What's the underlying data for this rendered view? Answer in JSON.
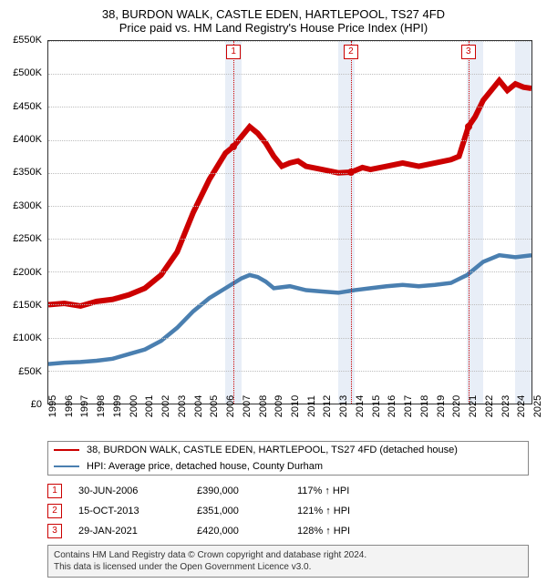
{
  "title_line1": "38, BURDON WALK, CASTLE EDEN, HARTLEPOOL, TS27 4FD",
  "title_line2": "Price paid vs. HM Land Registry's House Price Index (HPI)",
  "chart": {
    "type": "line",
    "background_color": "#ffffff",
    "grid_color": "#bdbdbd",
    "band_color": "#e8eef7",
    "ylim": [
      0,
      550000
    ],
    "ytick_step": 50000,
    "yticks": [
      "£0",
      "£50K",
      "£100K",
      "£150K",
      "£200K",
      "£250K",
      "£300K",
      "£350K",
      "£400K",
      "£450K",
      "£500K",
      "£550K"
    ],
    "x_start_year": 1995,
    "x_end_year": 2025,
    "xticks": [
      "1995",
      "1996",
      "1997",
      "1998",
      "1999",
      "2000",
      "2001",
      "2002",
      "2003",
      "2004",
      "2005",
      "2006",
      "2007",
      "2008",
      "2009",
      "2010",
      "2011",
      "2012",
      "2013",
      "2014",
      "2015",
      "2016",
      "2017",
      "2018",
      "2019",
      "2020",
      "2021",
      "2022",
      "2023",
      "2024",
      "2025"
    ],
    "series": [
      {
        "name": "property",
        "color": "#cc0000",
        "width": 2,
        "points": [
          [
            1995.0,
            150000
          ],
          [
            1996.0,
            152000
          ],
          [
            1997.0,
            148000
          ],
          [
            1998.0,
            155000
          ],
          [
            1999.0,
            158000
          ],
          [
            2000.0,
            165000
          ],
          [
            2001.0,
            175000
          ],
          [
            2002.0,
            195000
          ],
          [
            2003.0,
            230000
          ],
          [
            2004.0,
            290000
          ],
          [
            2005.0,
            340000
          ],
          [
            2006.0,
            380000
          ],
          [
            2006.5,
            390000
          ],
          [
            2007.0,
            405000
          ],
          [
            2007.5,
            420000
          ],
          [
            2008.0,
            410000
          ],
          [
            2008.5,
            395000
          ],
          [
            2009.0,
            375000
          ],
          [
            2009.5,
            360000
          ],
          [
            2010.0,
            365000
          ],
          [
            2010.5,
            368000
          ],
          [
            2011.0,
            360000
          ],
          [
            2012.0,
            355000
          ],
          [
            2013.0,
            350000
          ],
          [
            2013.8,
            351000
          ],
          [
            2014.5,
            358000
          ],
          [
            2015.0,
            355000
          ],
          [
            2016.0,
            360000
          ],
          [
            2017.0,
            365000
          ],
          [
            2018.0,
            360000
          ],
          [
            2019.0,
            365000
          ],
          [
            2020.0,
            370000
          ],
          [
            2020.5,
            375000
          ],
          [
            2021.08,
            420000
          ],
          [
            2021.5,
            435000
          ],
          [
            2022.0,
            460000
          ],
          [
            2022.5,
            475000
          ],
          [
            2023.0,
            490000
          ],
          [
            2023.5,
            475000
          ],
          [
            2024.0,
            485000
          ],
          [
            2024.5,
            480000
          ],
          [
            2025.0,
            478000
          ]
        ]
      },
      {
        "name": "hpi",
        "color": "#4a7fb0",
        "width": 1.5,
        "points": [
          [
            1995.0,
            60000
          ],
          [
            1996.0,
            62000
          ],
          [
            1997.0,
            63000
          ],
          [
            1998.0,
            65000
          ],
          [
            1999.0,
            68000
          ],
          [
            2000.0,
            75000
          ],
          [
            2001.0,
            82000
          ],
          [
            2002.0,
            95000
          ],
          [
            2003.0,
            115000
          ],
          [
            2004.0,
            140000
          ],
          [
            2005.0,
            160000
          ],
          [
            2006.0,
            175000
          ],
          [
            2007.0,
            190000
          ],
          [
            2007.5,
            195000
          ],
          [
            2008.0,
            192000
          ],
          [
            2008.5,
            185000
          ],
          [
            2009.0,
            175000
          ],
          [
            2010.0,
            178000
          ],
          [
            2011.0,
            172000
          ],
          [
            2012.0,
            170000
          ],
          [
            2013.0,
            168000
          ],
          [
            2014.0,
            172000
          ],
          [
            2015.0,
            175000
          ],
          [
            2016.0,
            178000
          ],
          [
            2017.0,
            180000
          ],
          [
            2018.0,
            178000
          ],
          [
            2019.0,
            180000
          ],
          [
            2020.0,
            183000
          ],
          [
            2021.0,
            195000
          ],
          [
            2022.0,
            215000
          ],
          [
            2023.0,
            225000
          ],
          [
            2024.0,
            222000
          ],
          [
            2025.0,
            225000
          ]
        ]
      }
    ],
    "bands_at_years": [
      2006,
      2013,
      2021,
      2024
    ],
    "events": [
      {
        "n": "1",
        "year": 2006.5,
        "value": 390000,
        "color": "#cc0000"
      },
      {
        "n": "2",
        "year": 2013.79,
        "value": 351000,
        "color": "#cc0000"
      },
      {
        "n": "3",
        "year": 2021.08,
        "value": 420000,
        "color": "#cc0000"
      }
    ]
  },
  "legend": {
    "items": [
      {
        "color": "#cc0000",
        "label": "38, BURDON WALK, CASTLE EDEN, HARTLEPOOL, TS27 4FD (detached house)"
      },
      {
        "color": "#4a7fb0",
        "label": "HPI: Average price, detached house, County Durham"
      }
    ]
  },
  "event_table": [
    {
      "n": "1",
      "date": "30-JUN-2006",
      "price": "£390,000",
      "pct": "117% ↑ HPI"
    },
    {
      "n": "2",
      "date": "15-OCT-2013",
      "price": "£351,000",
      "pct": "121% ↑ HPI"
    },
    {
      "n": "3",
      "date": "29-JAN-2021",
      "price": "£420,000",
      "pct": "128% ↑ HPI"
    }
  ],
  "footer_line1": "Contains HM Land Registry data © Crown copyright and database right 2024.",
  "footer_line2": "This data is licensed under the Open Government Licence v3.0."
}
